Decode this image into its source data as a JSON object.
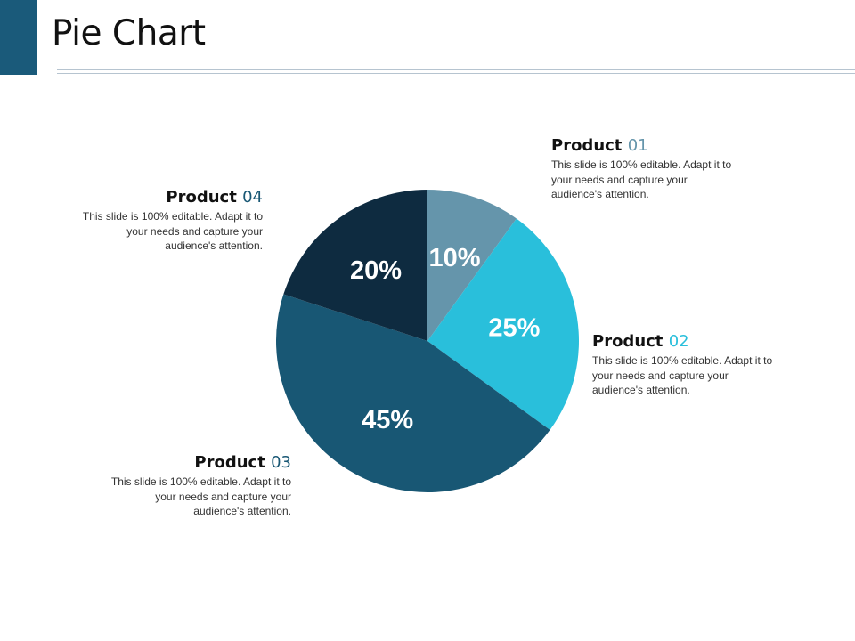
{
  "slide": {
    "title": "Pie Chart"
  },
  "colors": {
    "accent": "#1a5a7a",
    "rule": "#b6c4d0"
  },
  "chart_data": {
    "type": "pie",
    "categories": [
      "Product 01",
      "Product 02",
      "Product 03",
      "Product 04"
    ],
    "values": [
      10,
      25,
      45,
      20
    ],
    "value_labels": [
      "10%",
      "25%",
      "45%",
      "20%"
    ],
    "colors": [
      "#6595ab",
      "#29bfdb",
      "#185774",
      "#0e2b40"
    ],
    "start": "top",
    "direction": "clockwise"
  },
  "labels": [
    {
      "word": "Product",
      "number": "01",
      "number_color": "#6595ab",
      "desc": "This slide is 100% editable. Adapt it to your needs and capture your audience's attention."
    },
    {
      "word": "Product",
      "number": "02",
      "number_color": "#29bfdb",
      "desc": "This slide is 100% editable. Adapt it to your needs and capture your audience's attention."
    },
    {
      "word": "Product",
      "number": "03",
      "number_color": "#185774",
      "desc": "This slide is 100% editable. Adapt it to your needs and capture your audience's attention."
    },
    {
      "word": "Product",
      "number": "04",
      "number_color": "#185774",
      "desc": "This slide is 100% editable. Adapt it to your needs and capture your audience's attention."
    }
  ]
}
